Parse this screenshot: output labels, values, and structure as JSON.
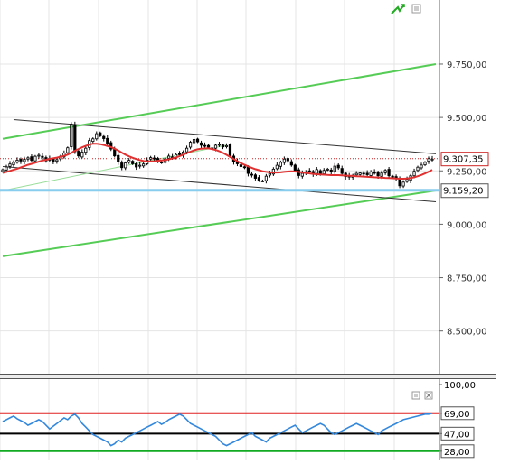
{
  "chart_data": [
    {
      "type": "candlestick",
      "ylim": [
        8300,
        10050
      ],
      "y_tick_labels": [
        {
          "value": 9750,
          "label": "9.750,00"
        },
        {
          "value": 9500,
          "label": "9.500,00"
        },
        {
          "value": 9250,
          "label": "9.250,00"
        },
        {
          "value": 9000,
          "label": "9.000,00"
        },
        {
          "value": 8750,
          "label": "8.750,00"
        },
        {
          "value": 8500,
          "label": "8.500,00"
        }
      ],
      "grid": true,
      "x_count": 120,
      "close_series": [
        9255,
        9268,
        9282,
        9290,
        9300,
        9296,
        9304,
        9311,
        9299,
        9318,
        9323,
        9313,
        9297,
        9308,
        9295,
        9302,
        9318,
        9334,
        9358,
        9468,
        9340,
        9320,
        9338,
        9356,
        9392,
        9400,
        9424,
        9414,
        9401,
        9377,
        9352,
        9320,
        9292,
        9265,
        9287,
        9299,
        9283,
        9268,
        9276,
        9282,
        9300,
        9312,
        9306,
        9296,
        9290,
        9306,
        9319,
        9313,
        9326,
        9328,
        9338,
        9356,
        9384,
        9397,
        9386,
        9370,
        9366,
        9361,
        9356,
        9370,
        9374,
        9362,
        9368,
        9321,
        9292,
        9283,
        9270,
        9265,
        9238,
        9231,
        9215,
        9206,
        9203,
        9225,
        9237,
        9258,
        9276,
        9290,
        9305,
        9297,
        9277,
        9251,
        9228,
        9238,
        9245,
        9249,
        9236,
        9256,
        9237,
        9252,
        9258,
        9247,
        9272,
        9264,
        9238,
        9223,
        9221,
        9229,
        9238,
        9240,
        9236,
        9232,
        9245,
        9239,
        9227,
        9240,
        9252,
        9227,
        9221,
        9215,
        9180,
        9197,
        9210,
        9227,
        9248,
        9267,
        9277,
        9290,
        9307,
        9305
      ],
      "moving_average": [
        9240,
        9245,
        9250,
        9255,
        9260,
        9266,
        9272,
        9278,
        9283,
        9288,
        9293,
        9298,
        9302,
        9306,
        9309,
        9312,
        9316,
        9320,
        9326,
        9334,
        9344,
        9352,
        9360,
        9367,
        9373,
        9377,
        9377,
        9375,
        9371,
        9366,
        9361,
        9354,
        9345,
        9335,
        9326,
        9318,
        9311,
        9305,
        9300,
        9296,
        9294,
        9294,
        9295,
        9297,
        9299,
        9301,
        9304,
        9308,
        9313,
        9319,
        9326,
        9333,
        9340,
        9346,
        9351,
        9354,
        9355,
        9355,
        9352,
        9348,
        9342,
        9334,
        9325,
        9315,
        9305,
        9295,
        9286,
        9278,
        9271,
        9264,
        9258,
        9253,
        9248,
        9245,
        9243,
        9242,
        9242,
        9243,
        9245,
        9247,
        9248,
        9247,
        9245,
        9242,
        9240,
        9238,
        9236,
        9234,
        9233,
        9232,
        9231,
        9230,
        9230,
        9230,
        9229,
        9228,
        9227,
        9226,
        9225,
        9224,
        9223,
        9222,
        9221,
        9220,
        9219,
        9218,
        9217,
        9216,
        9215,
        9214,
        9213,
        9213,
        9214,
        9216,
        9220,
        9225,
        9231,
        9238,
        9246,
        9255
      ],
      "trendlines": [
        {
          "color": "#55cc55",
          "from": [
            0,
            9400
          ],
          "to": [
            120,
            9750
          ]
        },
        {
          "color": "#55cc55",
          "from": [
            0,
            8850
          ],
          "to": [
            120,
            9158
          ]
        },
        {
          "color": "#333333",
          "from": [
            3,
            9490
          ],
          "to": [
            120,
            9330
          ]
        },
        {
          "color": "#333333",
          "from": [
            0,
            9270
          ],
          "to": [
            120,
            9105
          ]
        }
      ],
      "support_level": 9159.2,
      "last_price": 9307.35,
      "last_price_label": "9.307,35",
      "support_label": "9.159,20",
      "colors": {
        "up": "#ffffff",
        "down": "#000000",
        "ma": "#e03030",
        "support": "#88ccee",
        "trend": "#55cc55"
      }
    },
    {
      "type": "line",
      "ylim": [
        20,
        100
      ],
      "y_tick_labels": [
        {
          "value": 100,
          "label": "100,00"
        },
        {
          "value": 69,
          "label": "69,00"
        },
        {
          "value": 47,
          "label": "47,00"
        },
        {
          "value": 28,
          "label": "28,00"
        }
      ],
      "levels": [
        {
          "value": 69,
          "color": "#e02020"
        },
        {
          "value": 47,
          "color": "#000000"
        },
        {
          "value": 28,
          "color": "#11aa22"
        }
      ],
      "values": [
        60,
        62,
        64,
        66,
        63,
        61,
        59,
        56,
        58,
        60,
        62,
        60,
        56,
        52,
        55,
        58,
        61,
        64,
        62,
        66,
        68,
        64,
        58,
        54,
        50,
        46,
        44,
        42,
        40,
        38,
        34,
        36,
        40,
        38,
        42,
        44,
        46,
        48,
        50,
        52,
        54,
        56,
        58,
        60,
        57,
        59,
        62,
        64,
        66,
        68,
        66,
        62,
        58,
        56,
        54,
        52,
        50,
        48,
        46,
        44,
        40,
        36,
        34,
        36,
        38,
        40,
        42,
        44,
        46,
        48,
        44,
        42,
        40,
        38,
        42,
        44,
        46,
        48,
        50,
        52,
        54,
        56,
        52,
        48,
        50,
        52,
        54,
        56,
        58,
        56,
        52,
        48,
        46,
        48,
        50,
        52,
        54,
        56,
        58,
        56,
        54,
        52,
        50,
        48,
        46,
        50,
        52,
        54,
        56,
        58,
        60,
        62,
        63,
        64,
        65,
        66,
        67,
        68,
        68,
        69
      ]
    }
  ]
}
